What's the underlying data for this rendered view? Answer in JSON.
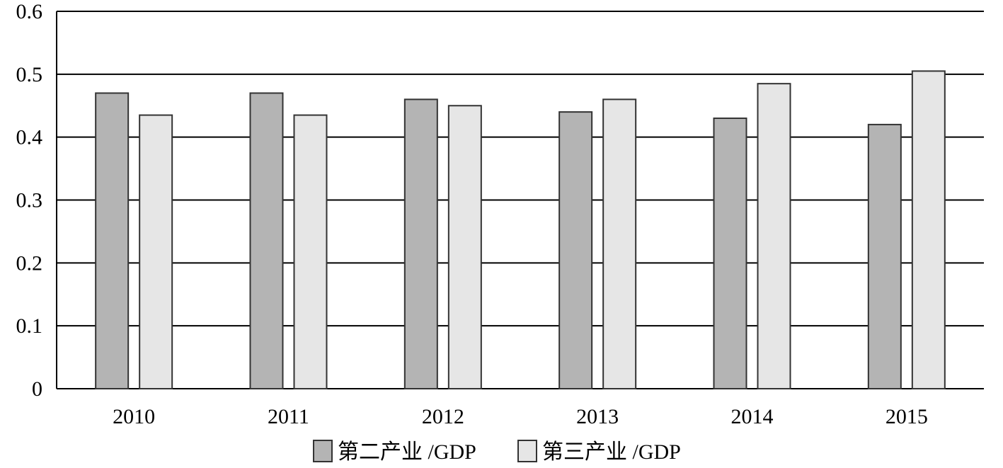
{
  "chart_data": {
    "type": "bar",
    "categories": [
      "2010",
      "2011",
      "2012",
      "2013",
      "2014",
      "2015"
    ],
    "series": [
      {
        "name": "第二产业 /GDP",
        "values": [
          0.47,
          0.47,
          0.46,
          0.44,
          0.43,
          0.42
        ],
        "color": "#b4b4b4"
      },
      {
        "name": "第三产业 /GDP",
        "values": [
          0.435,
          0.435,
          0.45,
          0.46,
          0.485,
          0.505
        ],
        "color": "#e6e6e6"
      }
    ],
    "title": "",
    "xlabel": "",
    "ylabel": "",
    "ylim": [
      0,
      0.6
    ],
    "yticks": [
      "0",
      "0.1",
      "0.2",
      "0.3",
      "0.4",
      "0.5",
      "0.6"
    ],
    "grid": "horizontal",
    "legend_position": "bottom-center"
  }
}
